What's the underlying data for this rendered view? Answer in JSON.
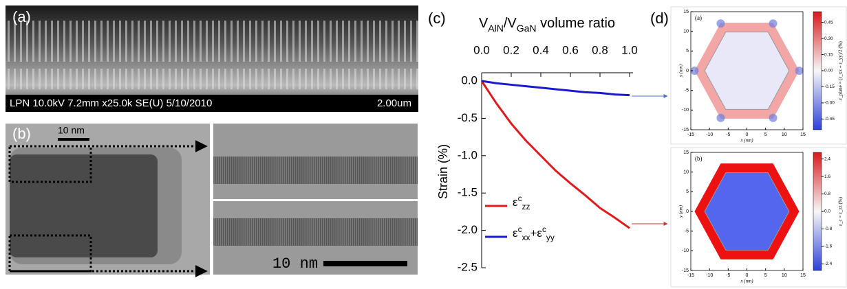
{
  "panels": {
    "a": {
      "label": "(a)",
      "info": "LPN 10.0kV 7.2mm x25.0k SE(U) 5/10/2010",
      "scale": "2.00um"
    },
    "b": {
      "label": "(b)",
      "scale_top": "10 nm",
      "scale_bottom": "10 nm"
    },
    "c": {
      "label": "(c)"
    },
    "d": {
      "label": "(d)"
    }
  },
  "chart_data": [
    {
      "type": "line",
      "x_label": [
        {
          "text": "V"
        },
        {
          "sub": "AlN"
        },
        {
          "text": "/V"
        },
        {
          "sub": "GaN"
        },
        {
          "text": " volume ratio"
        }
      ],
      "y_label": "Strain (%)",
      "x": [
        0,
        0.1,
        0.2,
        0.3,
        0.4,
        0.5,
        0.6,
        0.7,
        0.8,
        0.9,
        1.0
      ],
      "xlim": [
        0,
        1.0
      ],
      "xticks": [
        {
          "value": 0,
          "label": "0.0"
        },
        {
          "value": 0.2,
          "label": "0.2"
        },
        {
          "value": 0.4,
          "label": "0.4"
        },
        {
          "value": 0.6,
          "label": "0.6"
        },
        {
          "value": 0.8,
          "label": "0.8"
        },
        {
          "value": 1.0,
          "label": "1.0"
        }
      ],
      "ylim": [
        -2.5,
        0
      ],
      "yticks": [
        {
          "value": 0,
          "label": "0.0"
        },
        {
          "value": -0.5,
          "label": "-0.5"
        },
        {
          "value": -1.0,
          "label": "-1.0"
        },
        {
          "value": -1.5,
          "label": "-1.5"
        },
        {
          "value": -2.0,
          "label": "-2.0"
        },
        {
          "value": -2.5,
          "label": "-2.5"
        }
      ],
      "series": [
        {
          "name": [
            {
              "text": "ε"
            },
            {
              "sup": "c"
            },
            {
              "sub": "zz"
            }
          ],
          "color": "#e31a1c",
          "values": [
            0,
            -0.3,
            -0.57,
            -0.8,
            -1.0,
            -1.2,
            -1.37,
            -1.53,
            -1.7,
            -1.83,
            -1.97
          ]
        },
        {
          "name": [
            {
              "text": "ε"
            },
            {
              "sup": "c"
            },
            {
              "sub": "xx"
            },
            {
              "text": "+ε"
            },
            {
              "sup": "c"
            },
            {
              "sub": "yy"
            }
          ],
          "color": "#1a1acc",
          "values": [
            0,
            -0.03,
            -0.05,
            -0.07,
            -0.09,
            -0.11,
            -0.13,
            -0.15,
            -0.16,
            -0.18,
            -0.19
          ]
        }
      ]
    },
    {
      "type": "map",
      "label": "(a)",
      "xlabel": "x (nm)",
      "ylabel": "y (nm)",
      "xlim": [
        -15,
        15
      ],
      "ylim": [
        -15,
        15
      ],
      "xticks": [
        -15,
        -10,
        -5,
        0,
        5,
        10,
        15
      ],
      "yticks": [
        -15,
        -10,
        -5,
        0,
        5,
        10,
        15
      ],
      "clim": [
        -0.55,
        0.55
      ],
      "cticks": [
        {
          "value": 0.45,
          "label": "0.45"
        },
        {
          "value": 0.3,
          "label": "0.30"
        },
        {
          "value": 0.15,
          "label": "0.15"
        },
        {
          "value": 0,
          "label": "0.00"
        },
        {
          "value": -0.15,
          "label": "-0.15"
        },
        {
          "value": -0.3,
          "label": "-0.30"
        },
        {
          "value": -0.45,
          "label": "-0.45"
        }
      ],
      "colorbar_label": "ε_plane = (ε_xx + ε_yy)/2 (%)"
    },
    {
      "type": "map",
      "label": "(b)",
      "xlabel": "x (nm)",
      "ylabel": "y (nm)",
      "xlim": [
        -15,
        15
      ],
      "ylim": [
        -15,
        15
      ],
      "xticks": [
        -15,
        -10,
        -5,
        0,
        5,
        10,
        15
      ],
      "yticks": [
        -15,
        -10,
        -5,
        0,
        5,
        10,
        15
      ],
      "clim": [
        -2.7,
        2.7
      ],
      "cticks": [
        2.4,
        1.6,
        0.8,
        {
          "value": 0,
          "label": "0.0"
        },
        -0.8,
        -1.6,
        -2.4
      ],
      "colorbar_label": "ε_c = ε_zz (%)"
    }
  ]
}
